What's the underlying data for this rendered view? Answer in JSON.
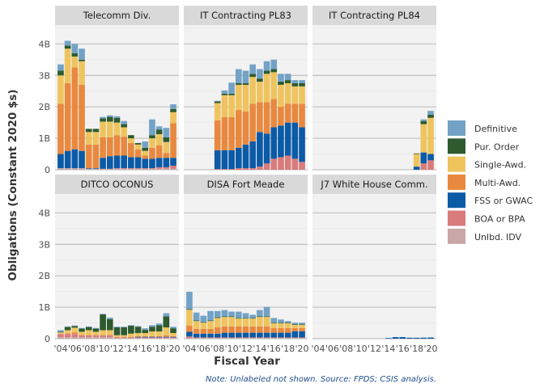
{
  "chart_data": {
    "type": "bar",
    "stacked": true,
    "ylabel": "Obligations (Constant 2020 $s)",
    "xlabel": "Fiscal Year",
    "caption": "Note: Unlabeled not shown. Source: FPDS; CSIS analysis.",
    "ylim": [
      0,
      4.6
    ],
    "y_ticks": [
      {
        "value": 0,
        "label": "0"
      },
      {
        "value": 1,
        "label": "1B"
      },
      {
        "value": 2,
        "label": "2B"
      },
      {
        "value": 3,
        "label": "3B"
      },
      {
        "value": 4,
        "label": "4B"
      }
    ],
    "years": [
      2004,
      2005,
      2006,
      2007,
      2008,
      2009,
      2010,
      2011,
      2012,
      2013,
      2014,
      2015,
      2016,
      2017,
      2018,
      2019,
      2020
    ],
    "x_ticks": [
      {
        "year": 2004,
        "label": "'04"
      },
      {
        "year": 2006,
        "label": "'06"
      },
      {
        "year": 2008,
        "label": "'08"
      },
      {
        "year": 2010,
        "label": "'10"
      },
      {
        "year": 2012,
        "label": "'12"
      },
      {
        "year": 2014,
        "label": "'14"
      },
      {
        "year": 2016,
        "label": "'16"
      },
      {
        "year": 2018,
        "label": "'18"
      },
      {
        "year": 2020,
        "label": "'20"
      }
    ],
    "legend_position": "right",
    "series": [
      {
        "key": "unlbd",
        "name": "Unlbd. IDV",
        "color": "#c9a7a7"
      },
      {
        "key": "boa",
        "name": "BOA or BPA",
        "color": "#d97b7b"
      },
      {
        "key": "fss",
        "name": "FSS or GWAC",
        "color": "#0b5aa6"
      },
      {
        "key": "multi",
        "name": "Multi-Awd.",
        "color": "#e8893f"
      },
      {
        "key": "single",
        "name": "Single-Awd.",
        "color": "#efc45f"
      },
      {
        "key": "pur",
        "name": "Pur. Order",
        "color": "#2e5a2e"
      },
      {
        "key": "def",
        "name": "Definitive",
        "color": "#73a2c6"
      }
    ],
    "legend_order": [
      "def",
      "pur",
      "single",
      "multi",
      "fss",
      "boa",
      "unlbd"
    ],
    "panels": [
      {
        "title": "Telecomm Div.",
        "values": {
          "unlbd": [
            0.05,
            0.05,
            0.05,
            0.05,
            0.03,
            0.03,
            0.03,
            0.03,
            0.03,
            0.03,
            0.03,
            0.03,
            0.03,
            0.03,
            0.03,
            0.03,
            0.03
          ],
          "boa": [
            0,
            0,
            0,
            0,
            0,
            0,
            0,
            0,
            0.02,
            0.02,
            0.02,
            0.02,
            0.02,
            0.02,
            0.05,
            0.05,
            0.1
          ],
          "fss": [
            0.45,
            0.55,
            0.6,
            0.55,
            0.02,
            0.02,
            0.35,
            0.4,
            0.4,
            0.4,
            0.35,
            0.35,
            0.3,
            0.3,
            0.3,
            0.3,
            0.25
          ],
          "multi": [
            1.6,
            2.15,
            2.6,
            2.1,
            0.75,
            0.75,
            0.65,
            0.6,
            0.65,
            0.6,
            0.45,
            0.25,
            0.1,
            0.35,
            0.4,
            0.15,
            1.1
          ],
          "single": [
            0.9,
            1.1,
            0.35,
            0.75,
            0.4,
            0.4,
            0.5,
            0.5,
            0.4,
            0.3,
            0.15,
            0.15,
            0.15,
            0.3,
            0.35,
            0.35,
            0.35
          ],
          "pur": [
            0.15,
            0.1,
            0.1,
            0.05,
            0.1,
            0.1,
            0.1,
            0.15,
            0.15,
            0.1,
            0.1,
            0.05,
            0.1,
            0.1,
            0.15,
            0.15,
            0.1
          ],
          "def": [
            0.2,
            0.15,
            0.3,
            0.35,
            0,
            0,
            0.05,
            0.05,
            0.05,
            0.1,
            0,
            0,
            0.2,
            0.5,
            0.1,
            0.3,
            0.15
          ]
        }
      },
      {
        "title": "IT Contracting PL83",
        "values": {
          "unlbd": [
            0,
            0,
            0,
            0,
            0,
            0,
            0,
            0,
            0,
            0,
            0,
            0,
            0,
            0,
            0,
            0,
            0
          ],
          "boa": [
            0,
            0,
            0,
            0,
            0.02,
            0.02,
            0.02,
            0.05,
            0.05,
            0.05,
            0.1,
            0.2,
            0.35,
            0.4,
            0.45,
            0.35,
            0.25
          ],
          "fss": [
            0,
            0,
            0,
            0,
            0.6,
            0.6,
            0.6,
            0.65,
            0.75,
            0.85,
            1.1,
            0.95,
            1.0,
            1.0,
            1.05,
            1.15,
            1.1
          ],
          "multi": [
            0,
            0,
            0,
            0,
            0.95,
            1.05,
            1.05,
            1.2,
            1.05,
            1.2,
            0.95,
            1.0,
            0.9,
            0.6,
            0.6,
            0.6,
            0.75
          ],
          "single": [
            0,
            0,
            0,
            0,
            0.55,
            0.7,
            0.7,
            0.8,
            0.85,
            0.85,
            0.65,
            0.9,
            0.85,
            0.7,
            0.65,
            0.55,
            0.55
          ],
          "pur": [
            0,
            0,
            0,
            0,
            0.05,
            0.05,
            0.05,
            0.05,
            0.05,
            0.1,
            0.1,
            0.1,
            0.1,
            0.1,
            0.1,
            0.1,
            0.1
          ],
          "def": [
            0,
            0,
            0,
            0,
            0.02,
            0.1,
            0.35,
            0.45,
            0.4,
            0.3,
            0.3,
            0.3,
            0.3,
            0.25,
            0.2,
            0.1,
            0.1
          ]
        }
      },
      {
        "title": "IT Contracting PL84",
        "values": {
          "unlbd": [
            0,
            0,
            0,
            0,
            0,
            0,
            0,
            0,
            0,
            0,
            0,
            0,
            0,
            0,
            0,
            0,
            0
          ],
          "boa": [
            0,
            0,
            0,
            0,
            0,
            0,
            0,
            0,
            0,
            0,
            0,
            0,
            0,
            0,
            0,
            0.2,
            0.3
          ],
          "fss": [
            0,
            0,
            0,
            0,
            0,
            0,
            0,
            0,
            0,
            0,
            0,
            0,
            0,
            0,
            0.1,
            0.35,
            0.2
          ],
          "multi": [
            0,
            0,
            0,
            0,
            0,
            0,
            0,
            0,
            0,
            0,
            0,
            0,
            0,
            0,
            0,
            0,
            0
          ],
          "single": [
            0,
            0,
            0,
            0,
            0,
            0,
            0,
            0,
            0,
            0,
            0,
            0,
            0,
            0,
            0.4,
            0.9,
            1.15
          ],
          "pur": [
            0,
            0,
            0,
            0,
            0,
            0,
            0,
            0,
            0,
            0,
            0,
            0,
            0,
            0,
            0.02,
            0.1,
            0.1
          ],
          "def": [
            0,
            0,
            0,
            0,
            0,
            0,
            0,
            0,
            0,
            0,
            0,
            0,
            0,
            0,
            0,
            0.05,
            0.12
          ]
        }
      },
      {
        "title": "DITCO OCONUS",
        "values": {
          "unlbd": [
            0.05,
            0.05,
            0.05,
            0.05,
            0.05,
            0.05,
            0.05,
            0.05,
            0.02,
            0.02,
            0.02,
            0.02,
            0.02,
            0.02,
            0.02,
            0.02,
            0.02
          ],
          "boa": [
            0.1,
            0.1,
            0.1,
            0.05,
            0.05,
            0.05,
            0.05,
            0.05,
            0.02,
            0.02,
            0.02,
            0.02,
            0.02,
            0.02,
            0.02,
            0.02,
            0.02
          ],
          "fss": [
            0,
            0,
            0,
            0,
            0,
            0,
            0,
            0,
            0,
            0,
            0,
            0.02,
            0.02,
            0.02,
            0.02,
            0.02,
            0.02
          ],
          "multi": [
            0,
            0.02,
            0.05,
            0.02,
            0.02,
            0.02,
            0.02,
            0.02,
            0.02,
            0.02,
            0.02,
            0.02,
            0.02,
            0.02,
            0.02,
            0.05,
            0.02
          ],
          "single": [
            0.05,
            0.1,
            0.15,
            0.1,
            0.15,
            0.1,
            0.15,
            0.15,
            0.05,
            0.05,
            0.1,
            0.1,
            0.1,
            0.15,
            0.15,
            0.25,
            0.1
          ],
          "pur": [
            0.02,
            0.1,
            0.05,
            0.1,
            0.1,
            0.1,
            0.5,
            0.35,
            0.25,
            0.25,
            0.25,
            0.2,
            0.1,
            0.15,
            0.2,
            0.35,
            0.15
          ],
          "def": [
            0.05,
            0.02,
            0.02,
            0.02,
            0.02,
            0.02,
            0.02,
            0.05,
            0.02,
            0.02,
            0.02,
            0.02,
            0.05,
            0.05,
            0.05,
            0.1,
            0.05
          ]
        }
      },
      {
        "title": "DISA Fort Meade",
        "values": {
          "unlbd": [
            0.02,
            0.02,
            0.02,
            0.02,
            0.02,
            0.02,
            0.02,
            0.02,
            0.02,
            0.02,
            0.02,
            0.02,
            0.02,
            0.02,
            0.02,
            0.02,
            0.02
          ],
          "boa": [
            0.05,
            0.02,
            0.02,
            0.02,
            0.02,
            0.02,
            0.02,
            0.02,
            0.02,
            0.02,
            0.02,
            0.02,
            0.02,
            0.02,
            0.02,
            0.02,
            0.02
          ],
          "fss": [
            0.15,
            0.12,
            0.12,
            0.12,
            0.12,
            0.15,
            0.15,
            0.15,
            0.15,
            0.15,
            0.15,
            0.15,
            0.15,
            0.15,
            0.15,
            0.2,
            0.2
          ],
          "multi": [
            0.2,
            0.15,
            0.15,
            0.15,
            0.2,
            0.2,
            0.2,
            0.2,
            0.2,
            0.2,
            0.2,
            0.2,
            0.15,
            0.15,
            0.15,
            0.1,
            0.1
          ],
          "single": [
            0.5,
            0.25,
            0.2,
            0.25,
            0.3,
            0.3,
            0.3,
            0.25,
            0.25,
            0.25,
            0.3,
            0.3,
            0.15,
            0.15,
            0.15,
            0.1,
            0.1
          ],
          "pur": [
            0.02,
            0.02,
            0.02,
            0.02,
            0.02,
            0.02,
            0.02,
            0.02,
            0.02,
            0.02,
            0.02,
            0.02,
            0.02,
            0.02,
            0.02,
            0.02,
            0.02
          ],
          "def": [
            0.55,
            0.25,
            0.2,
            0.3,
            0.2,
            0.2,
            0.15,
            0.2,
            0.15,
            0.1,
            0.2,
            0.3,
            0.15,
            0.1,
            0.05,
            0.05,
            0.05
          ]
        }
      },
      {
        "title": "J7 White House Comm.",
        "values": {
          "unlbd": [
            0,
            0,
            0,
            0,
            0,
            0,
            0,
            0,
            0,
            0,
            0,
            0,
            0,
            0,
            0,
            0,
            0
          ],
          "boa": [
            0,
            0,
            0,
            0,
            0,
            0,
            0,
            0,
            0,
            0,
            0,
            0,
            0,
            0,
            0,
            0,
            0
          ],
          "fss": [
            0,
            0,
            0,
            0,
            0,
            0,
            0,
            0,
            0,
            0,
            0.02,
            0.05,
            0.05,
            0.03,
            0.03,
            0.03,
            0.03
          ],
          "multi": [
            0,
            0,
            0,
            0,
            0,
            0,
            0,
            0,
            0,
            0,
            0,
            0,
            0,
            0,
            0,
            0,
            0
          ],
          "single": [
            0,
            0,
            0,
            0,
            0,
            0,
            0,
            0,
            0,
            0,
            0,
            0,
            0,
            0,
            0,
            0,
            0
          ],
          "pur": [
            0,
            0,
            0,
            0,
            0,
            0,
            0,
            0,
            0,
            0,
            0,
            0,
            0,
            0,
            0,
            0,
            0
          ],
          "def": [
            0,
            0,
            0,
            0,
            0,
            0,
            0,
            0,
            0,
            0,
            0,
            0,
            0,
            0,
            0,
            0.01,
            0.02
          ]
        }
      }
    ]
  }
}
